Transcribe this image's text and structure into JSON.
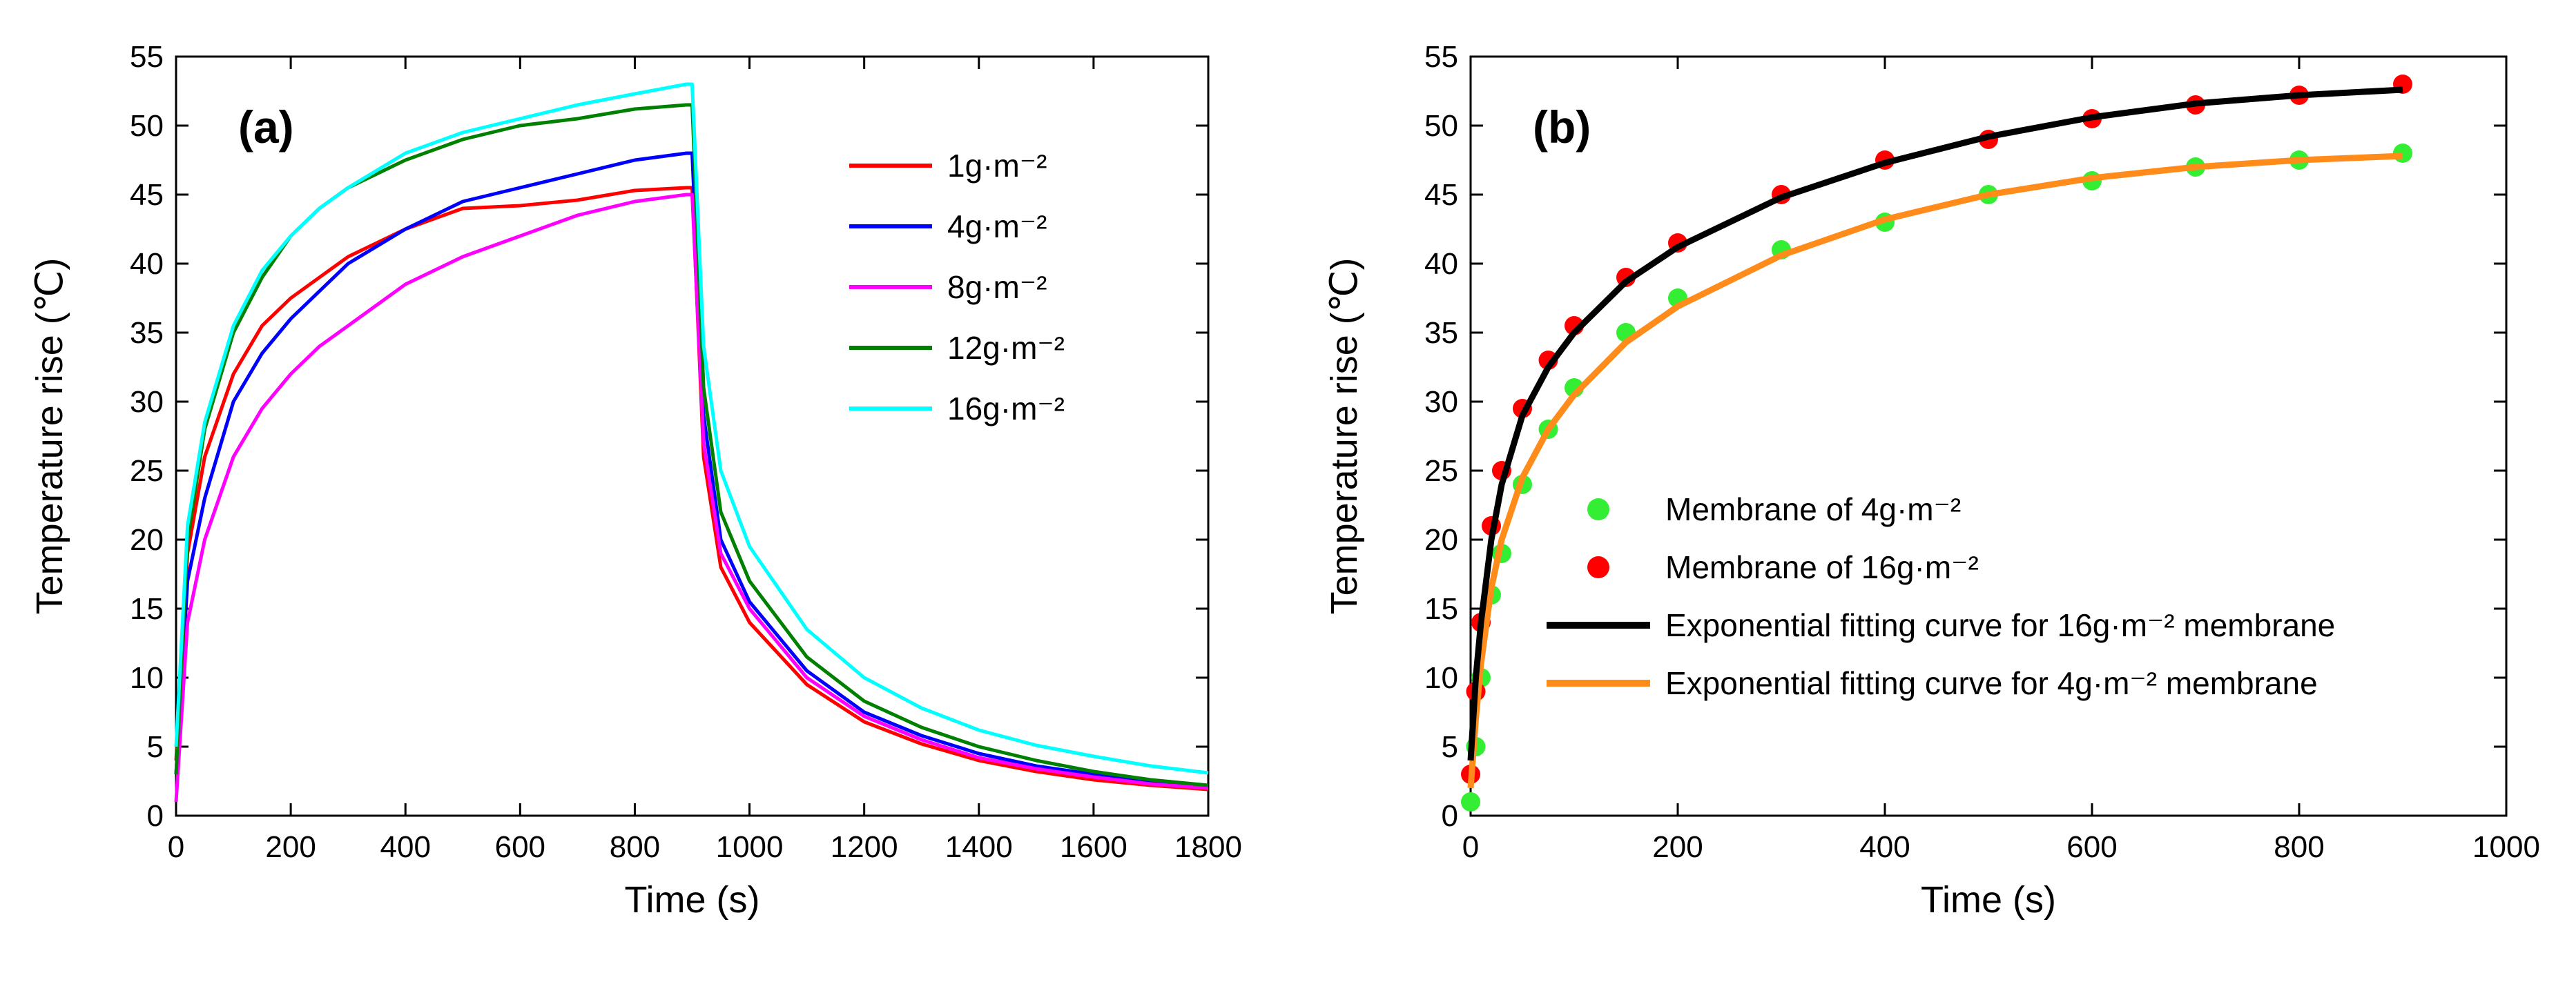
{
  "chart_data": [
    {
      "type": "line",
      "panel_label": "(a)",
      "xlabel": "Time (s)",
      "ylabel": "Temperature rise (℃)",
      "xlim": [
        0,
        1800
      ],
      "ylim": [
        0,
        55
      ],
      "xticks": [
        "0",
        "200",
        "400",
        "600",
        "800",
        "1000",
        "1200",
        "1400",
        "1600",
        "1800"
      ],
      "yticks": [
        "0",
        "5",
        "10",
        "15",
        "20",
        "25",
        "30",
        "35",
        "40",
        "45",
        "50",
        "55"
      ],
      "grid": false,
      "legend_position": "top-right",
      "series": [
        {
          "name": "1g·m⁻²",
          "color": "#ff0000",
          "x": [
            0,
            20,
            50,
            100,
            150,
            200,
            250,
            300,
            400,
            500,
            600,
            700,
            800,
            890,
            900,
            920,
            950,
            1000,
            1100,
            1200,
            1300,
            1400,
            1500,
            1600,
            1700,
            1800
          ],
          "y": [
            4,
            19,
            26,
            32,
            35.5,
            37.5,
            39,
            40.5,
            42.5,
            44,
            44.2,
            44.6,
            45.3,
            45.5,
            45.5,
            26,
            18,
            14,
            9.5,
            6.8,
            5.2,
            4,
            3.2,
            2.6,
            2.2,
            1.9
          ]
        },
        {
          "name": "4g·m⁻²",
          "color": "#0000ff",
          "x": [
            0,
            20,
            50,
            100,
            150,
            200,
            250,
            300,
            400,
            500,
            600,
            700,
            800,
            890,
            900,
            920,
            950,
            1000,
            1100,
            1200,
            1300,
            1400,
            1500,
            1600,
            1700,
            1800
          ],
          "y": [
            3,
            17,
            23,
            30,
            33.5,
            36,
            38,
            40,
            42.5,
            44.5,
            45.5,
            46.5,
            47.5,
            48,
            48,
            29,
            20,
            15.5,
            10.5,
            7.5,
            5.8,
            4.5,
            3.6,
            3,
            2.5,
            2.1
          ]
        },
        {
          "name": "8g·m⁻²",
          "color": "#ff00ff",
          "x": [
            0,
            20,
            50,
            100,
            150,
            200,
            250,
            300,
            400,
            500,
            600,
            700,
            800,
            890,
            900,
            920,
            950,
            1000,
            1100,
            1200,
            1300,
            1400,
            1500,
            1600,
            1700,
            1800
          ],
          "y": [
            1,
            14,
            20,
            26,
            29.5,
            32,
            34,
            35.5,
            38.5,
            40.5,
            42,
            43.5,
            44.5,
            45,
            45,
            27,
            19,
            15,
            10,
            7.2,
            5.5,
            4.2,
            3.4,
            2.8,
            2.3,
            2
          ]
        },
        {
          "name": "12g·m⁻²",
          "color": "#008000",
          "x": [
            0,
            20,
            50,
            100,
            150,
            200,
            250,
            300,
            400,
            500,
            600,
            700,
            800,
            890,
            900,
            920,
            950,
            1000,
            1100,
            1200,
            1300,
            1400,
            1500,
            1600,
            1700,
            1800
          ],
          "y": [
            3,
            20,
            28,
            35,
            39,
            42,
            44,
            45.5,
            47.5,
            49,
            50,
            50.5,
            51.2,
            51.5,
            51.5,
            31,
            22,
            17,
            11.5,
            8.3,
            6.4,
            5,
            4,
            3.2,
            2.6,
            2.2
          ]
        },
        {
          "name": "16g·m⁻²",
          "color": "#00ffff",
          "x": [
            0,
            20,
            50,
            100,
            150,
            200,
            250,
            300,
            400,
            500,
            600,
            700,
            800,
            890,
            900,
            920,
            950,
            1000,
            1100,
            1200,
            1300,
            1400,
            1500,
            1600,
            1700,
            1800
          ],
          "y": [
            5,
            21,
            28.5,
            35.5,
            39.5,
            42,
            44,
            45.5,
            48,
            49.5,
            50.5,
            51.5,
            52.3,
            53,
            53,
            34,
            25,
            19.5,
            13.5,
            10,
            7.8,
            6.2,
            5.1,
            4.3,
            3.6,
            3.1
          ]
        }
      ]
    },
    {
      "type": "scatter",
      "panel_label": "(b)",
      "xlabel": "Time (s)",
      "ylabel": "Temperature rise (℃)",
      "xlim": [
        0,
        1000
      ],
      "ylim": [
        0,
        55
      ],
      "xticks": [
        "0",
        "200",
        "400",
        "600",
        "800",
        "1000"
      ],
      "yticks": [
        "0",
        "5",
        "10",
        "15",
        "20",
        "25",
        "30",
        "35",
        "40",
        "45",
        "50",
        "55"
      ],
      "grid": false,
      "legend_position": "bottom-center",
      "series": [
        {
          "name": "Membrane of 4g·m⁻²",
          "kind": "scatter",
          "color": "#33ee33",
          "x": [
            0,
            5,
            10,
            20,
            30,
            50,
            75,
            100,
            150,
            200,
            300,
            400,
            500,
            600,
            700,
            800,
            900
          ],
          "y": [
            1,
            5,
            10,
            16,
            19,
            24,
            28,
            31,
            35,
            37.5,
            41,
            43,
            45,
            46,
            47,
            47.5,
            48
          ]
        },
        {
          "name": "Membrane of 16g·m⁻²",
          "kind": "scatter",
          "color": "#ff0000",
          "x": [
            0,
            5,
            10,
            20,
            30,
            50,
            75,
            100,
            150,
            200,
            300,
            400,
            500,
            600,
            700,
            800,
            900
          ],
          "y": [
            3,
            9,
            14,
            21,
            25,
            29.5,
            33,
            35.5,
            39,
            41.5,
            45,
            47.5,
            49,
            50.5,
            51.5,
            52.2,
            53
          ]
        },
        {
          "name": "Exponential fitting curve for 16g·m⁻² membrane",
          "kind": "line",
          "color": "#000000",
          "x": [
            0,
            5,
            10,
            20,
            30,
            50,
            75,
            100,
            150,
            200,
            300,
            400,
            500,
            600,
            700,
            800,
            900
          ],
          "y": [
            4,
            10,
            14,
            20,
            24,
            29,
            32.5,
            35,
            38.7,
            41.2,
            44.8,
            47.3,
            49.2,
            50.6,
            51.6,
            52.2,
            52.6
          ]
        },
        {
          "name": "Exponential fitting curve for 4g·m⁻² membrane",
          "kind": "line",
          "color": "#ff8c1a",
          "x": [
            0,
            5,
            10,
            20,
            30,
            50,
            75,
            100,
            150,
            200,
            300,
            400,
            500,
            600,
            700,
            800,
            900
          ],
          "y": [
            2,
            7,
            11,
            16.5,
            20,
            24.5,
            28,
            30.5,
            34.3,
            36.9,
            40.6,
            43.2,
            45,
            46.2,
            47,
            47.5,
            47.8
          ]
        }
      ]
    }
  ]
}
